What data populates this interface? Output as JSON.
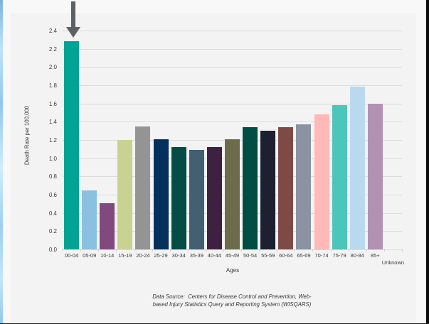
{
  "window": {
    "page_background": "#f8f8f8",
    "card_background": "#f3f3f3",
    "left_edge_color": "#8ec6ee",
    "right_edge_color": "#0d0d0d",
    "arrow_color": "#5c6165",
    "gridline_color": "#dcdcdc",
    "axis_text_color": "#3d3d3d"
  },
  "chart_data": {
    "type": "bar",
    "xlabel": "Ages",
    "ylabel": "Death Rate per 100,000",
    "ylim": [
      0,
      2.5
    ],
    "grid": true,
    "legend": false,
    "ytick_labels": [
      "0.0",
      "0.2",
      "0.4",
      "0.6",
      "0.8",
      "1.0",
      "1.2",
      "1.4",
      "1.6",
      "1.8",
      "2.0",
      "2.2",
      "2.4"
    ],
    "categories": [
      "00-04",
      "05-09",
      "10-14",
      "15-19",
      "20-24",
      "25-29",
      "30-34",
      "35-39",
      "40-44",
      "45-49",
      "50-54",
      "55-59",
      "60-64",
      "65-69",
      "70-74",
      "75-79",
      "80-84",
      "85+",
      "Unknown"
    ],
    "values": [
      2.28,
      0.65,
      0.51,
      1.2,
      1.35,
      1.21,
      1.12,
      1.09,
      1.12,
      1.21,
      1.34,
      1.3,
      1.34,
      1.37,
      1.48,
      1.58,
      1.78,
      1.6,
      null
    ],
    "bar_colors": [
      "#00a394",
      "#8bc1e0",
      "#82497e",
      "#c9d291",
      "#949494",
      "#04305e",
      "#054c45",
      "#426071",
      "#3e2040",
      "#6c6c4a",
      "#004d43",
      "#1c2030",
      "#7e4a46",
      "#8b93a3",
      "#ffb9b6",
      "#4cc5ba",
      "#b9daee",
      "#b292b2",
      null
    ],
    "staggered_labels": [
      "Unknown"
    ],
    "annotation": {
      "type": "down-arrow",
      "target_category": "00-04"
    }
  },
  "footer": {
    "source_line1": "Data Source:  Centers for Disease Control and Prevention, Web-",
    "source_line2": "based Injury Statistics Query and Reporting System (WISQARS)"
  }
}
